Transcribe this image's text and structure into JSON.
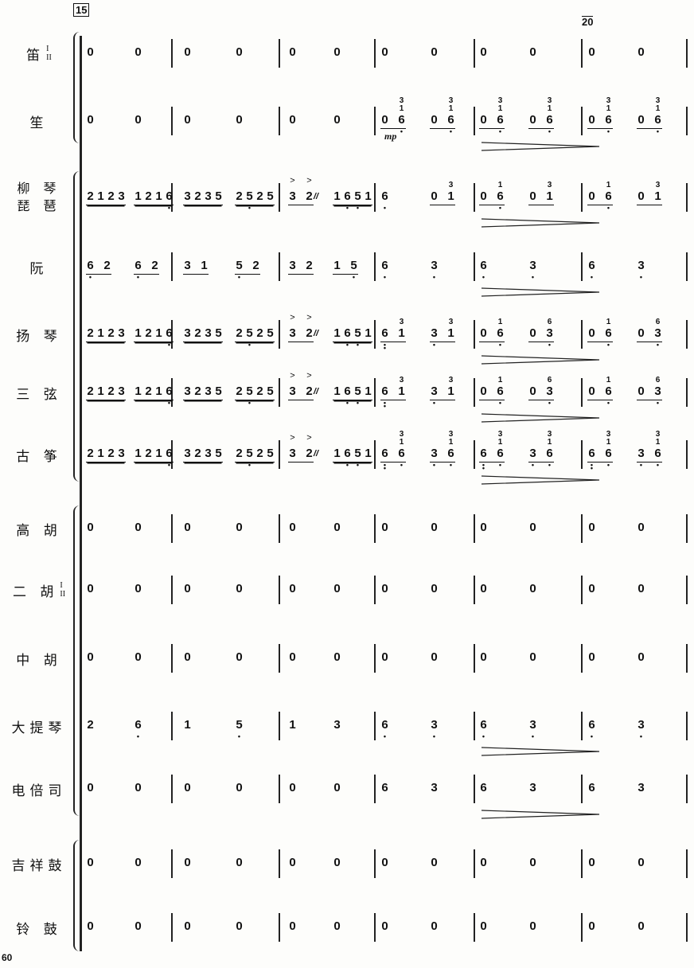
{
  "rehearsal_marks": [
    "15",
    "20"
  ],
  "page_number": "60",
  "dynamic": "mp",
  "rows": [
    {
      "label": "笛",
      "sub": [
        "I",
        "II"
      ],
      "m": [
        [
          [
            0,
            "0"
          ],
          [
            0,
            "0"
          ]
        ],
        [
          [
            0,
            "0"
          ],
          [
            0,
            "0"
          ]
        ],
        [
          [
            0,
            "0"
          ],
          [
            0,
            "0"
          ]
        ],
        [
          [
            0,
            "0"
          ],
          [
            0,
            "0"
          ]
        ],
        [
          [
            0,
            "0"
          ],
          [
            0,
            "0"
          ]
        ],
        [
          [
            0,
            "0"
          ],
          [
            0,
            "0"
          ]
        ]
      ]
    },
    {
      "label": "笙",
      "dyn": "mp",
      "hairpin": true,
      "m": [
        [
          [
            0,
            "0"
          ],
          [
            0,
            "0"
          ]
        ],
        [
          [
            0,
            "0"
          ],
          [
            0,
            "0"
          ]
        ],
        [
          [
            0,
            "0"
          ],
          [
            0,
            "0"
          ]
        ],
        [
          [
            1,
            "0",
            "6.|1|3"
          ],
          [
            1,
            "0",
            "6.|1|3"
          ]
        ],
        [
          [
            1,
            "0",
            "6.|1|3"
          ],
          [
            1,
            "0",
            "6.|1|3"
          ]
        ],
        [
          [
            1,
            "0",
            "6.|1|3"
          ],
          [
            1,
            "0",
            "6.|1|3"
          ]
        ]
      ]
    },
    {
      "label": "柳 琴",
      "label2": "琵 琶",
      "hairpin": true,
      "m": [
        [
          [
            2,
            "2",
            "1",
            "2",
            "3"
          ],
          [
            2,
            "1",
            "2",
            "1",
            "6."
          ]
        ],
        [
          [
            2,
            "3",
            "2",
            "3",
            "5"
          ],
          [
            2,
            "2",
            "5.",
            "2",
            "5"
          ]
        ],
        [
          [
            1,
            ">3",
            ">2~"
          ],
          [
            2,
            "1",
            "6.",
            "5.",
            "1"
          ]
        ],
        [
          [
            0,
            "6."
          ],
          [
            1,
            "0",
            "1|3"
          ]
        ],
        [
          [
            1,
            "0",
            "6.|1"
          ],
          [
            1,
            "0",
            "1|3"
          ]
        ],
        [
          [
            1,
            "0",
            "6.|1"
          ],
          [
            1,
            "0",
            "1|3"
          ]
        ]
      ]
    },
    {
      "label": "阮",
      "hairpin": true,
      "m": [
        [
          [
            1,
            "6.",
            "2"
          ],
          [
            1,
            "6.",
            "2"
          ]
        ],
        [
          [
            1,
            "3",
            "1"
          ],
          [
            1,
            "5.",
            "2"
          ]
        ],
        [
          [
            1,
            "3",
            "2"
          ],
          [
            1,
            "1",
            "5."
          ]
        ],
        [
          [
            0,
            "6."
          ],
          [
            0,
            "3."
          ]
        ],
        [
          [
            0,
            "6."
          ],
          [
            0,
            "3."
          ]
        ],
        [
          [
            0,
            "6."
          ],
          [
            0,
            "3."
          ]
        ]
      ]
    },
    {
      "label": "扬 琴",
      "hairpin": true,
      "m": [
        [
          [
            2,
            "2",
            "1",
            "2",
            "3"
          ],
          [
            2,
            "1",
            "2",
            "1",
            "6."
          ]
        ],
        [
          [
            2,
            "3",
            "2",
            "3",
            "5"
          ],
          [
            2,
            "2",
            "5.",
            "2",
            "5"
          ]
        ],
        [
          [
            1,
            ">3",
            ">2~"
          ],
          [
            2,
            "1",
            "6.",
            "5.",
            "1"
          ]
        ],
        [
          [
            1,
            "6:",
            "1|3"
          ],
          [
            1,
            "3.",
            "1|3"
          ]
        ],
        [
          [
            1,
            "0",
            "6.|1"
          ],
          [
            1,
            "0",
            "3.|6"
          ]
        ],
        [
          [
            1,
            "0",
            "6.|1"
          ],
          [
            1,
            "0",
            "3.|6"
          ]
        ]
      ]
    },
    {
      "label": "三 弦",
      "hairpin": true,
      "m": [
        [
          [
            2,
            "2",
            "1",
            "2",
            "3"
          ],
          [
            2,
            "1",
            "2",
            "1",
            "6."
          ]
        ],
        [
          [
            2,
            "3",
            "2",
            "3",
            "5"
          ],
          [
            2,
            "2",
            "5.",
            "2",
            "5"
          ]
        ],
        [
          [
            1,
            ">3",
            ">2~"
          ],
          [
            2,
            "1",
            "6.",
            "5.",
            "1"
          ]
        ],
        [
          [
            1,
            "6:",
            "1|3"
          ],
          [
            1,
            "3.",
            "1|3"
          ]
        ],
        [
          [
            1,
            "0",
            "6.|1"
          ],
          [
            1,
            "0",
            "3.|6"
          ]
        ],
        [
          [
            1,
            "0",
            "6.|1"
          ],
          [
            1,
            "0",
            "3.|6"
          ]
        ]
      ]
    },
    {
      "label": "古 筝",
      "hairpin": true,
      "m": [
        [
          [
            2,
            "2",
            "1",
            "2",
            "3"
          ],
          [
            2,
            "1",
            "2",
            "1",
            "6."
          ]
        ],
        [
          [
            2,
            "3",
            "2",
            "3",
            "5"
          ],
          [
            2,
            "2",
            "5.",
            "2",
            "5"
          ]
        ],
        [
          [
            1,
            ">3",
            ">2~"
          ],
          [
            2,
            "1",
            "6.",
            "5.",
            "1"
          ]
        ],
        [
          [
            1,
            "6:",
            "6.|1|3"
          ],
          [
            1,
            "3.",
            "6.|1|3"
          ]
        ],
        [
          [
            1,
            "6:",
            "6.|1|3"
          ],
          [
            1,
            "3.",
            "6.|1|3"
          ]
        ],
        [
          [
            1,
            "6:",
            "6.|1|3"
          ],
          [
            1,
            "3.",
            "6.|1|3"
          ]
        ]
      ]
    },
    {
      "label": "高 胡",
      "m": [
        [
          [
            0,
            "0"
          ],
          [
            0,
            "0"
          ]
        ],
        [
          [
            0,
            "0"
          ],
          [
            0,
            "0"
          ]
        ],
        [
          [
            0,
            "0"
          ],
          [
            0,
            "0"
          ]
        ],
        [
          [
            0,
            "0"
          ],
          [
            0,
            "0"
          ]
        ],
        [
          [
            0,
            "0"
          ],
          [
            0,
            "0"
          ]
        ],
        [
          [
            0,
            "0"
          ],
          [
            0,
            "0"
          ]
        ]
      ]
    },
    {
      "label": "二 胡",
      "sub": [
        "I",
        "II"
      ],
      "m": [
        [
          [
            0,
            "0"
          ],
          [
            0,
            "0"
          ]
        ],
        [
          [
            0,
            "0"
          ],
          [
            0,
            "0"
          ]
        ],
        [
          [
            0,
            "0"
          ],
          [
            0,
            "0"
          ]
        ],
        [
          [
            0,
            "0"
          ],
          [
            0,
            "0"
          ]
        ],
        [
          [
            0,
            "0"
          ],
          [
            0,
            "0"
          ]
        ],
        [
          [
            0,
            "0"
          ],
          [
            0,
            "0"
          ]
        ]
      ]
    },
    {
      "label": "中 胡",
      "m": [
        [
          [
            0,
            "0"
          ],
          [
            0,
            "0"
          ]
        ],
        [
          [
            0,
            "0"
          ],
          [
            0,
            "0"
          ]
        ],
        [
          [
            0,
            "0"
          ],
          [
            0,
            "0"
          ]
        ],
        [
          [
            0,
            "0"
          ],
          [
            0,
            "0"
          ]
        ],
        [
          [
            0,
            "0"
          ],
          [
            0,
            "0"
          ]
        ],
        [
          [
            0,
            "0"
          ],
          [
            0,
            "0"
          ]
        ]
      ]
    },
    {
      "label": "大提琴",
      "hairpin": true,
      "m": [
        [
          [
            0,
            "2"
          ],
          [
            0,
            "6."
          ]
        ],
        [
          [
            0,
            "1"
          ],
          [
            0,
            "5."
          ]
        ],
        [
          [
            0,
            "1"
          ],
          [
            0,
            "3"
          ]
        ],
        [
          [
            0,
            "6."
          ],
          [
            0,
            "3."
          ]
        ],
        [
          [
            0,
            "6."
          ],
          [
            0,
            "3."
          ]
        ],
        [
          [
            0,
            "6."
          ],
          [
            0,
            "3."
          ]
        ]
      ]
    },
    {
      "label": "电倍司",
      "hairpin": true,
      "m": [
        [
          [
            0,
            "0"
          ],
          [
            0,
            "0"
          ]
        ],
        [
          [
            0,
            "0"
          ],
          [
            0,
            "0"
          ]
        ],
        [
          [
            0,
            "0"
          ],
          [
            0,
            "0"
          ]
        ],
        [
          [
            0,
            "6"
          ],
          [
            0,
            "3"
          ]
        ],
        [
          [
            0,
            "6"
          ],
          [
            0,
            "3"
          ]
        ],
        [
          [
            0,
            "6"
          ],
          [
            0,
            "3"
          ]
        ]
      ]
    },
    {
      "label": "吉祥鼓",
      "m": [
        [
          [
            0,
            "0"
          ],
          [
            0,
            "0"
          ]
        ],
        [
          [
            0,
            "0"
          ],
          [
            0,
            "0"
          ]
        ],
        [
          [
            0,
            "0"
          ],
          [
            0,
            "0"
          ]
        ],
        [
          [
            0,
            "0"
          ],
          [
            0,
            "0"
          ]
        ],
        [
          [
            0,
            "0"
          ],
          [
            0,
            "0"
          ]
        ],
        [
          [
            0,
            "0"
          ],
          [
            0,
            "0"
          ]
        ]
      ]
    },
    {
      "label": "铃 鼓",
      "m": [
        [
          [
            0,
            "0"
          ],
          [
            0,
            "0"
          ]
        ],
        [
          [
            0,
            "0"
          ],
          [
            0,
            "0"
          ]
        ],
        [
          [
            0,
            "0"
          ],
          [
            0,
            "0"
          ]
        ],
        [
          [
            0,
            "0"
          ],
          [
            0,
            "0"
          ]
        ],
        [
          [
            0,
            "0"
          ],
          [
            0,
            "0"
          ]
        ],
        [
          [
            0,
            "0"
          ],
          [
            0,
            "0"
          ]
        ]
      ]
    }
  ]
}
